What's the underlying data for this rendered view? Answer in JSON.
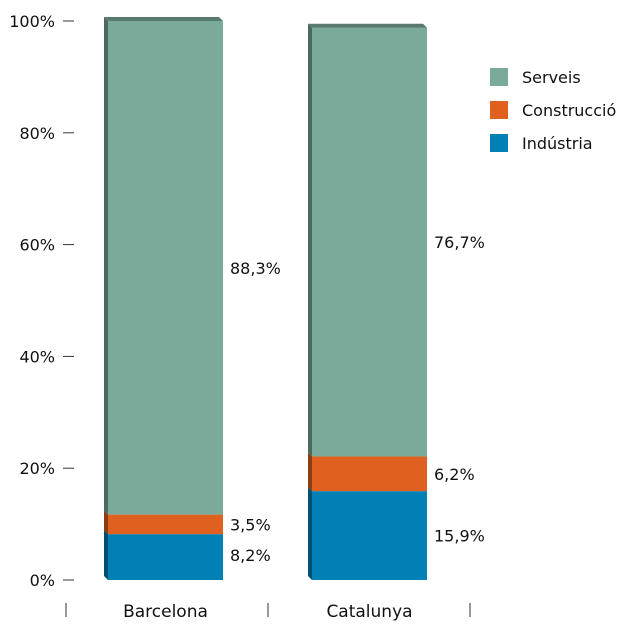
{
  "chart_data": {
    "type": "bar",
    "stacked": true,
    "title": "",
    "xlabel": "",
    "ylabel": "",
    "ylim": [
      0,
      100
    ],
    "yticks": [
      "0%",
      "20%",
      "40%",
      "60%",
      "80%",
      "100%"
    ],
    "categories": [
      "Barcelona",
      "Catalunya"
    ],
    "series": [
      {
        "name": "Indústria",
        "values": [
          8.2,
          15.9
        ],
        "labels": [
          "8,2%",
          "15,9%"
        ],
        "color": "#0080b4"
      },
      {
        "name": "Construcció",
        "values": [
          3.5,
          6.2
        ],
        "labels": [
          "3,5%",
          "6,2%"
        ],
        "color": "#e0601f"
      },
      {
        "name": "Serveis",
        "values": [
          88.3,
          76.7
        ],
        "labels": [
          "88,3%",
          "76,7%"
        ],
        "color": "#7aaa9a"
      }
    ],
    "legend": {
      "position": "top-right",
      "order": [
        "Serveis",
        "Construcció",
        "Indústria"
      ]
    },
    "grid": false
  }
}
